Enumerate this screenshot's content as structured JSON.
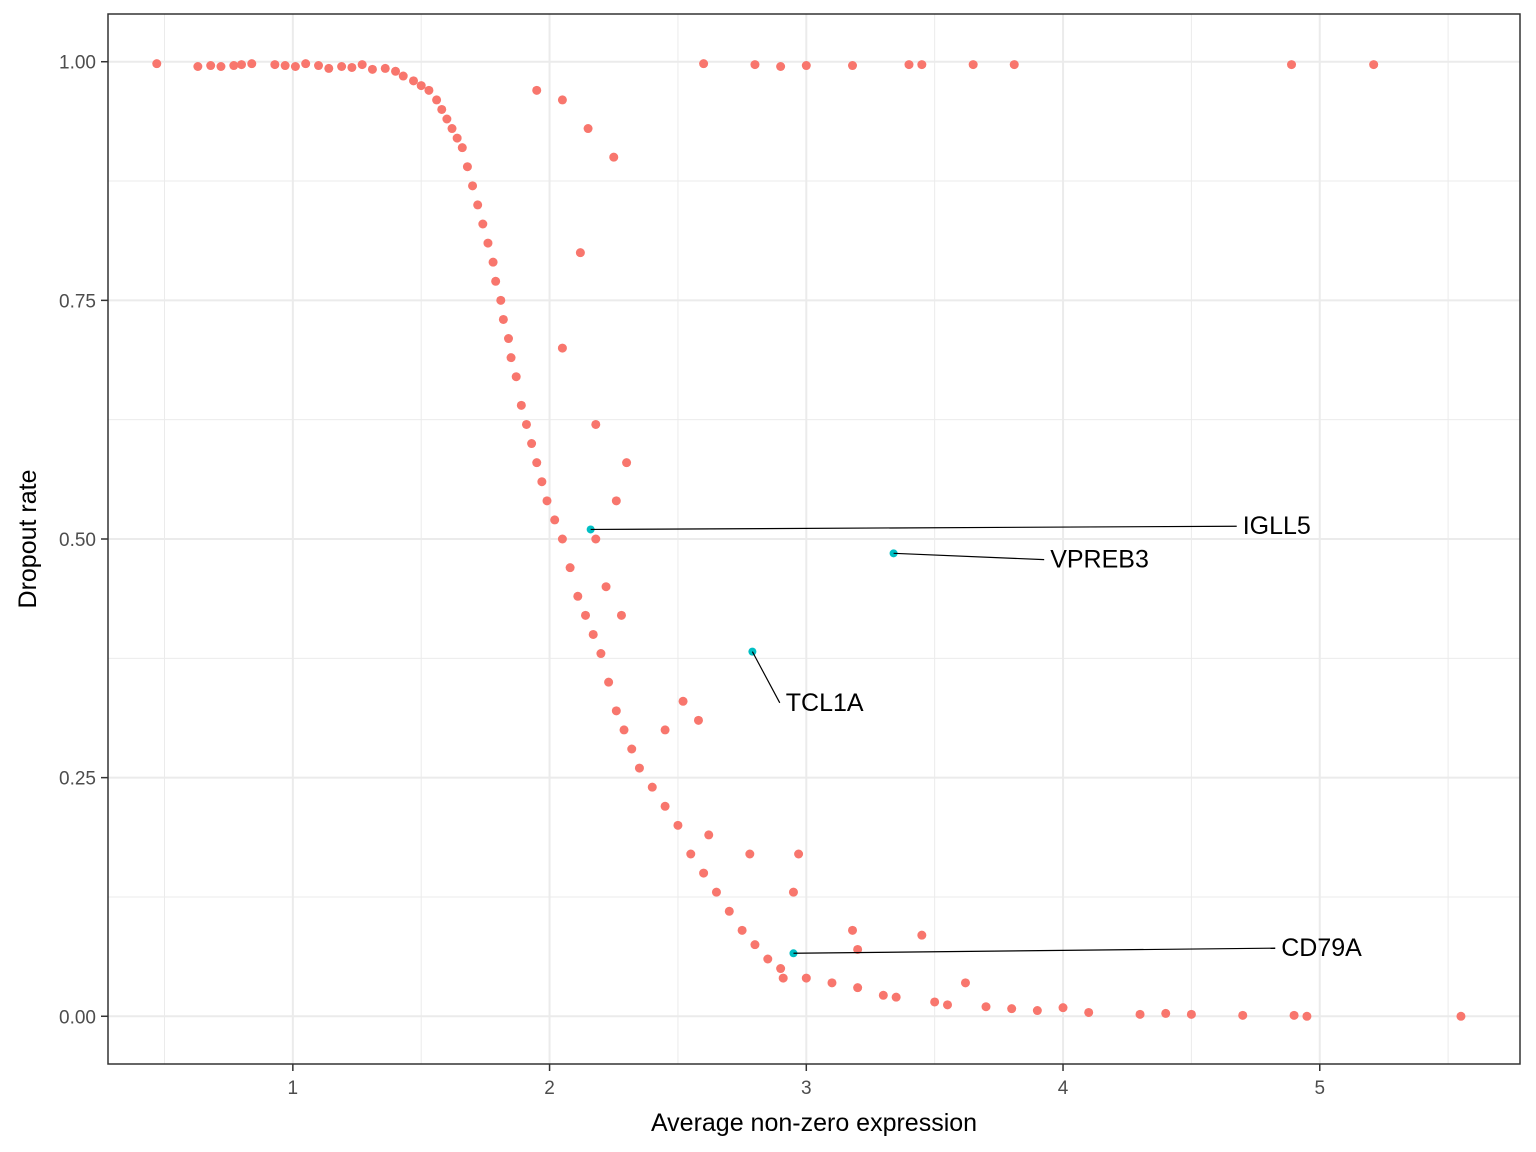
{
  "chart_data": {
    "type": "scatter",
    "title": "",
    "xlabel": "Average non-zero expression",
    "ylabel": "Dropout rate",
    "xlim": [
      0.28,
      5.78
    ],
    "ylim": [
      -0.05,
      1.05
    ],
    "x_ticks": [
      1,
      2,
      3,
      4,
      5
    ],
    "y_ticks": [
      0.0,
      0.25,
      0.5,
      0.75,
      1.0
    ],
    "x_tick_labels": [
      "1",
      "2",
      "3",
      "4",
      "5"
    ],
    "y_tick_labels": [
      "0.00",
      "0.25",
      "0.50",
      "0.75",
      "1.00"
    ],
    "grid": true,
    "legend": "none",
    "colors": {
      "points": "#F8766D",
      "highlight": "#00BFC4",
      "grid": "#ebebeb",
      "border": "#333333"
    },
    "series": [
      {
        "values_note": "",
        "points": [
          [
            0.47,
            0.998
          ],
          [
            0.63,
            0.995
          ],
          [
            0.68,
            0.996
          ],
          [
            0.72,
            0.995
          ],
          [
            0.77,
            0.996
          ],
          [
            0.8,
            0.997
          ],
          [
            0.84,
            0.998
          ],
          [
            0.93,
            0.997
          ],
          [
            0.97,
            0.996
          ],
          [
            1.01,
            0.995
          ],
          [
            1.05,
            0.998
          ],
          [
            1.1,
            0.996
          ],
          [
            1.14,
            0.993
          ],
          [
            1.19,
            0.995
          ],
          [
            1.23,
            0.994
          ],
          [
            1.27,
            0.997
          ],
          [
            1.31,
            0.992
          ],
          [
            1.36,
            0.993
          ],
          [
            1.4,
            0.99
          ],
          [
            1.43,
            0.985
          ],
          [
            1.47,
            0.98
          ],
          [
            1.5,
            0.975
          ],
          [
            1.53,
            0.97
          ],
          [
            1.56,
            0.96
          ],
          [
            1.58,
            0.95
          ],
          [
            1.6,
            0.94
          ],
          [
            1.62,
            0.93
          ],
          [
            1.64,
            0.92
          ],
          [
            1.66,
            0.91
          ],
          [
            1.68,
            0.89
          ],
          [
            1.7,
            0.87
          ],
          [
            1.72,
            0.85
          ],
          [
            1.74,
            0.83
          ],
          [
            1.76,
            0.81
          ],
          [
            1.78,
            0.79
          ],
          [
            1.79,
            0.77
          ],
          [
            1.81,
            0.75
          ],
          [
            1.82,
            0.73
          ],
          [
            1.84,
            0.71
          ],
          [
            1.85,
            0.69
          ],
          [
            1.87,
            0.67
          ],
          [
            1.89,
            0.64
          ],
          [
            1.91,
            0.62
          ],
          [
            1.93,
            0.6
          ],
          [
            1.95,
            0.58
          ],
          [
            1.97,
            0.56
          ],
          [
            1.99,
            0.54
          ],
          [
            2.02,
            0.52
          ],
          [
            2.05,
            0.5
          ],
          [
            2.08,
            0.47
          ],
          [
            2.11,
            0.44
          ],
          [
            2.14,
            0.42
          ],
          [
            2.17,
            0.4
          ],
          [
            2.2,
            0.38
          ],
          [
            2.23,
            0.35
          ],
          [
            2.26,
            0.32
          ],
          [
            2.29,
            0.3
          ],
          [
            2.32,
            0.28
          ],
          [
            2.35,
            0.26
          ],
          [
            2.4,
            0.24
          ],
          [
            2.45,
            0.22
          ],
          [
            2.5,
            0.2
          ],
          [
            2.55,
            0.17
          ],
          [
            2.6,
            0.15
          ],
          [
            2.65,
            0.13
          ],
          [
            2.7,
            0.11
          ],
          [
            2.75,
            0.09
          ],
          [
            2.8,
            0.075
          ],
          [
            2.85,
            0.06
          ],
          [
            2.9,
            0.05
          ],
          [
            3.0,
            0.04
          ],
          [
            3.1,
            0.035
          ],
          [
            3.2,
            0.03
          ],
          [
            3.35,
            0.02
          ],
          [
            3.5,
            0.015
          ],
          [
            3.7,
            0.01
          ],
          [
            3.9,
            0.006
          ],
          [
            4.1,
            0.004
          ],
          [
            4.3,
            0.002
          ],
          [
            4.5,
            0.002
          ],
          [
            4.7,
            0.001
          ],
          [
            4.9,
            0.001
          ],
          [
            5.55,
            0.0
          ],
          [
            1.95,
            0.97
          ],
          [
            2.05,
            0.96
          ],
          [
            2.15,
            0.93
          ],
          [
            2.25,
            0.9
          ],
          [
            2.12,
            0.8
          ],
          [
            2.05,
            0.7
          ],
          [
            2.18,
            0.62
          ],
          [
            2.3,
            0.58
          ],
          [
            2.26,
            0.54
          ],
          [
            2.18,
            0.5
          ],
          [
            2.22,
            0.45
          ],
          [
            2.28,
            0.42
          ],
          [
            2.52,
            0.33
          ],
          [
            2.58,
            0.31
          ],
          [
            2.45,
            0.3
          ],
          [
            2.62,
            0.19
          ],
          [
            2.78,
            0.17
          ],
          [
            2.97,
            0.17
          ],
          [
            2.95,
            0.13
          ],
          [
            3.18,
            0.09
          ],
          [
            3.45,
            0.085
          ],
          [
            3.2,
            0.07
          ],
          [
            3.62,
            0.035
          ],
          [
            2.91,
            0.04
          ],
          [
            3.3,
            0.022
          ],
          [
            3.55,
            0.012
          ],
          [
            3.8,
            0.008
          ],
          [
            4.0,
            0.009
          ],
          [
            4.4,
            0.003
          ],
          [
            4.95,
            0.0
          ],
          [
            2.6,
            0.998
          ],
          [
            2.8,
            0.997
          ],
          [
            2.9,
            0.995
          ],
          [
            3.0,
            0.996
          ],
          [
            3.18,
            0.996
          ],
          [
            3.4,
            0.997
          ],
          [
            3.45,
            0.997
          ],
          [
            3.65,
            0.997
          ],
          [
            3.81,
            0.997
          ],
          [
            4.89,
            0.997
          ],
          [
            5.21,
            0.997
          ]
        ]
      },
      {
        "name": "",
        "points": [
          [
            2.16,
            0.51
          ],
          [
            3.34,
            0.485
          ],
          [
            2.79,
            0.382
          ],
          [
            2.95,
            0.066
          ]
        ]
      }
    ],
    "labels": [
      {
        "text": "IGLL5",
        "x": 2.16,
        "y": 0.51,
        "label_x": 4.7,
        "label_y": 0.505
      },
      {
        "text": "VPREB3",
        "x": 3.34,
        "y": 0.485,
        "label_x": 3.95,
        "label_y": 0.47
      },
      {
        "text": "TCL1A",
        "x": 2.79,
        "y": 0.382,
        "label_x": 2.92,
        "label_y": 0.32
      },
      {
        "text": "CD79A",
        "x": 2.95,
        "y": 0.066,
        "label_x": 4.85,
        "label_y": 0.063
      }
    ]
  }
}
